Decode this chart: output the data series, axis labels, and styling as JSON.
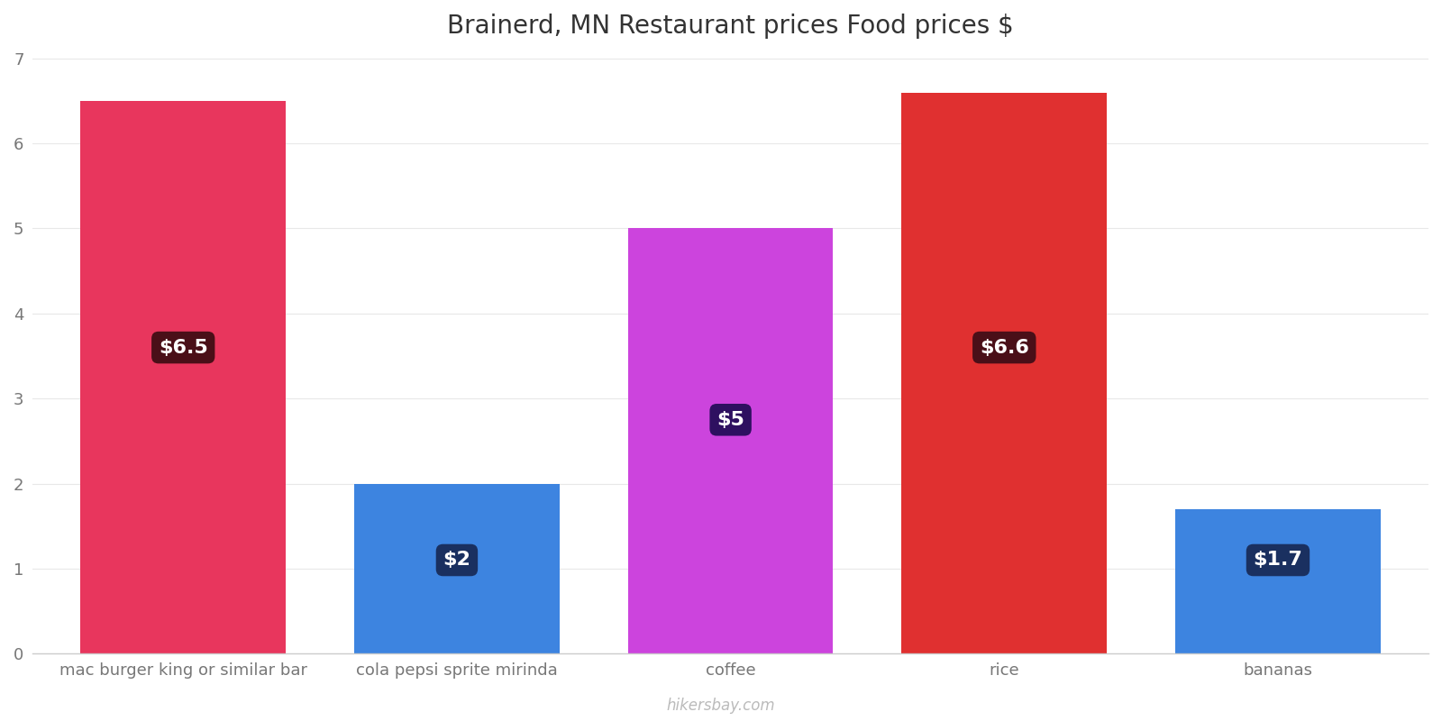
{
  "title": "Brainerd, MN Restaurant prices Food prices $",
  "categories": [
    "mac burger king or similar bar",
    "cola pepsi sprite mirinda",
    "coffee",
    "rice",
    "bananas"
  ],
  "values": [
    6.5,
    2.0,
    5.0,
    6.6,
    1.7
  ],
  "bar_colors": [
    "#e8365d",
    "#3d84e0",
    "#cc44dd",
    "#e03030",
    "#3d84e0"
  ],
  "label_texts": [
    "$6.5",
    "$2",
    "$5",
    "$6.6",
    "$1.7"
  ],
  "label_box_colors": [
    "#4a0f18",
    "#1a3060",
    "#2e1060",
    "#4a0f18",
    "#1a3060"
  ],
  "ylim": [
    0,
    7
  ],
  "yticks": [
    0,
    1,
    2,
    3,
    4,
    5,
    6,
    7
  ],
  "watermark": "hikersbay.com",
  "title_fontsize": 20,
  "tick_fontsize": 13,
  "label_fontsize": 16,
  "background_color": "#ffffff",
  "label_y_positions": [
    3.6,
    1.1,
    2.75,
    3.6,
    1.1
  ]
}
